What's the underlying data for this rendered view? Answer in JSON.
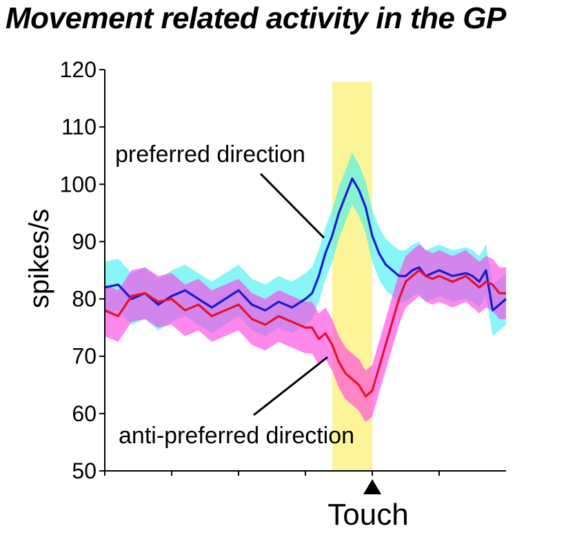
{
  "title": "Movement related activity in the GP",
  "chart_data": {
    "type": "line",
    "title": "Movement related activity in the GP",
    "ylabel": "spikes/s",
    "xlabel": "",
    "ylim": [
      50,
      120
    ],
    "yticks": [
      50,
      60,
      70,
      80,
      90,
      100,
      110,
      120
    ],
    "xlim": [
      0,
      1200
    ],
    "xticks": [
      0,
      200,
      400,
      600,
      800,
      1000
    ],
    "event": {
      "label": "Touch",
      "x": 800
    },
    "highlight": {
      "x_start": 680,
      "x_end": 800,
      "color": "#fbf38e"
    },
    "grid": false,
    "legend": "annotations",
    "series": [
      {
        "name": "preferred direction",
        "color": "#1a1ad0",
        "band_color": "#3ff0f0",
        "band_halfwidth": 4.5,
        "x": [
          0,
          40,
          80,
          120,
          160,
          200,
          240,
          280,
          320,
          360,
          400,
          440,
          480,
          520,
          560,
          600,
          620,
          640,
          660,
          680,
          700,
          720,
          740,
          760,
          780,
          800,
          820,
          840,
          860,
          880,
          900,
          920,
          940,
          960,
          980,
          1000,
          1040,
          1080,
          1100,
          1120,
          1140,
          1160,
          1180,
          1200
        ],
        "y": [
          82,
          82.5,
          80,
          81,
          79,
          80.5,
          81.5,
          80,
          78.5,
          80,
          81.5,
          79,
          78,
          79.5,
          78.5,
          80,
          81,
          84,
          88,
          91,
          95,
          98,
          101,
          99,
          96,
          91,
          88,
          86,
          85,
          84,
          84,
          85,
          85.5,
          84,
          84.5,
          85,
          84,
          84.5,
          84,
          83,
          85,
          78,
          79,
          80
        ]
      },
      {
        "name": "anti-preferred direction",
        "color": "#e8102a",
        "band_color": "#ff3fe2",
        "band_halfwidth": 4.5,
        "x": [
          0,
          40,
          80,
          120,
          160,
          200,
          240,
          280,
          320,
          360,
          400,
          440,
          480,
          520,
          560,
          600,
          620,
          640,
          660,
          680,
          700,
          720,
          740,
          760,
          780,
          800,
          820,
          840,
          860,
          880,
          900,
          920,
          940,
          960,
          980,
          1000,
          1040,
          1080,
          1100,
          1120,
          1140,
          1160,
          1180,
          1200
        ],
        "y": [
          78,
          77,
          80.5,
          81,
          79.5,
          80,
          78,
          79,
          77,
          78,
          79,
          76.5,
          75.5,
          77,
          76,
          75,
          75,
          73,
          74,
          72,
          69,
          67,
          66,
          65,
          63,
          64,
          68,
          72,
          76,
          80,
          83,
          84,
          85,
          84,
          83.5,
          84,
          83,
          84,
          83,
          82,
          83,
          82.5,
          81,
          81
        ]
      }
    ],
    "annotations": [
      {
        "text": "preferred direction",
        "series": "preferred direction"
      },
      {
        "text": "anti-preferred direction",
        "series": "anti-preferred direction"
      }
    ]
  }
}
